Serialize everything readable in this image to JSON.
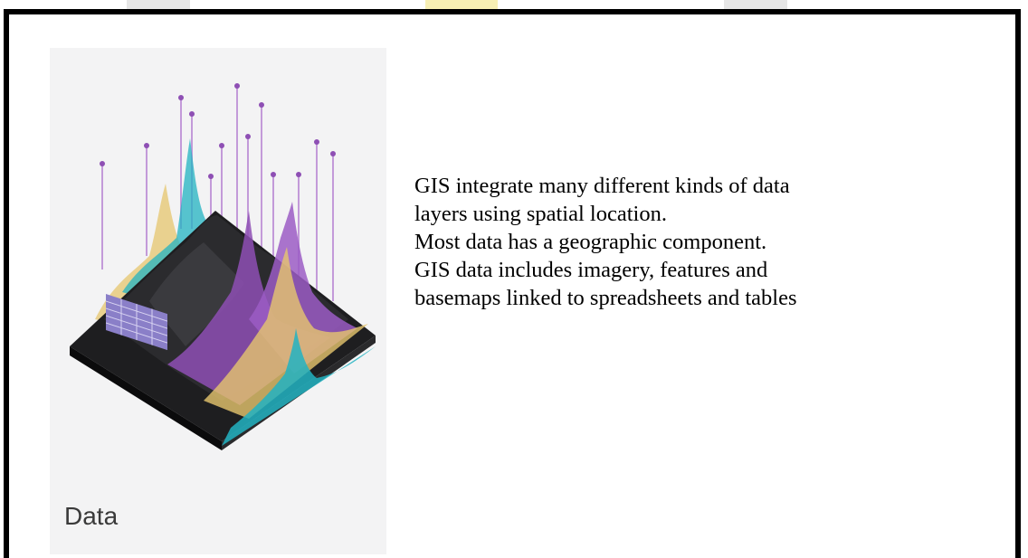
{
  "card": {
    "label": "Data",
    "image_icon": "data-terrain-layers-illustration",
    "colors": {
      "background": "#f3f3f4",
      "terrain": "#1e1e20",
      "purple": "#8e4fb4",
      "teal": "#22b3c2",
      "yellow": "#e6c66e",
      "table": "#8a7fc8"
    }
  },
  "body_text": [
    "GIS integrate many different kinds of data",
    "layers using spatial location.",
    "Most data has a geographic component.",
    "GIS data includes imagery, features and",
    "basemaps linked to spreadsheets and tables"
  ],
  "colors": {
    "frame_border": "#000000",
    "page_background": "#ffffff"
  }
}
